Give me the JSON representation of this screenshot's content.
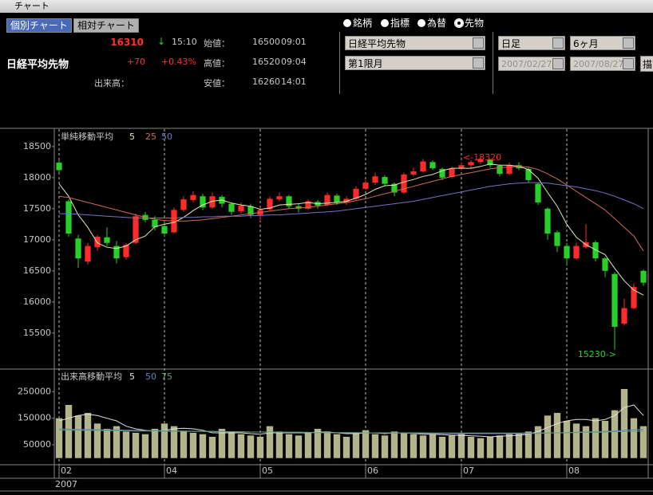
{
  "window": {
    "title": "チャート"
  },
  "tabs": [
    "個別チャート",
    "相対チャート"
  ],
  "selected_tab": 0,
  "quote": {
    "name": "日経平均先物",
    "price": 16310,
    "arrow": "↓",
    "time": "15:10",
    "change": "+70",
    "change_pct": "+0.43%",
    "open_label": "始値：",
    "open": 16500,
    "open_time": "09:01",
    "high_label": "高値：",
    "high": 16520,
    "high_time": "09:04",
    "volume_label": "出来高：",
    "low_label": "安値：",
    "low": 16260,
    "low_time": "14:01"
  },
  "market_types": [
    "銘柄",
    "指標",
    "為替",
    "先物"
  ],
  "selected_market": 3,
  "controls": {
    "symbol": "日経平均先物",
    "contract": "第1限月",
    "period": "日足",
    "range": "6ヶ月",
    "from": "2007/02/27",
    "to": "2007/08/27",
    "draw_button": "描"
  },
  "chart_data": [
    {
      "type": "candlestick",
      "legend_title": "単純移動平均",
      "up_color": "#ff2a2a",
      "down_color": "#2ad02a",
      "ylim": [
        14920,
        18780
      ],
      "yticks": [
        15500,
        16000,
        16500,
        17000,
        17500,
        18000,
        18500
      ],
      "annotations": [
        {
          "label": "<-18320",
          "value": 18320
        },
        {
          "label": "15230->",
          "value": 15230
        }
      ],
      "ohlc": [
        [
          18240,
          18290,
          18080,
          18120
        ],
        [
          17620,
          17650,
          17050,
          17100
        ],
        [
          17020,
          17080,
          16550,
          16700
        ],
        [
          16650,
          16950,
          16600,
          16900
        ],
        [
          16880,
          17080,
          16820,
          17050
        ],
        [
          17040,
          17200,
          16900,
          16950
        ],
        [
          16900,
          16980,
          16620,
          16700
        ],
        [
          16720,
          16950,
          16680,
          16920
        ],
        [
          16950,
          17420,
          16930,
          17380
        ],
        [
          17400,
          17450,
          17280,
          17320
        ],
        [
          17320,
          17380,
          17150,
          17200
        ],
        [
          17220,
          17300,
          17050,
          17100
        ],
        [
          17120,
          17520,
          17100,
          17480
        ],
        [
          17480,
          17700,
          17450,
          17650
        ],
        [
          17640,
          17780,
          17600,
          17720
        ],
        [
          17700,
          17740,
          17480,
          17520
        ],
        [
          17520,
          17760,
          17500,
          17700
        ],
        [
          17690,
          17720,
          17520,
          17580
        ],
        [
          17580,
          17600,
          17400,
          17450
        ],
        [
          17460,
          17600,
          17420,
          17550
        ],
        [
          17540,
          17580,
          17350,
          17400
        ],
        [
          17400,
          17520,
          17300,
          17480
        ],
        [
          17490,
          17700,
          17460,
          17660
        ],
        [
          17650,
          17760,
          17620,
          17700
        ],
        [
          17700,
          17720,
          17500,
          17540
        ],
        [
          17540,
          17580,
          17440,
          17500
        ],
        [
          17500,
          17650,
          17480,
          17620
        ],
        [
          17610,
          17640,
          17500,
          17550
        ],
        [
          17560,
          17760,
          17540,
          17720
        ],
        [
          17710,
          17740,
          17560,
          17600
        ],
        [
          17600,
          17700,
          17560,
          17660
        ],
        [
          17660,
          17860,
          17640,
          17820
        ],
        [
          17820,
          17960,
          17800,
          17920
        ],
        [
          17920,
          18080,
          17880,
          18020
        ],
        [
          18010,
          18040,
          17860,
          17900
        ],
        [
          17900,
          17920,
          17700,
          17760
        ],
        [
          17760,
          18080,
          17740,
          18050
        ],
        [
          18050,
          18160,
          18020,
          18100
        ],
        [
          18100,
          18300,
          18080,
          18260
        ],
        [
          18250,
          18280,
          18120,
          18150
        ],
        [
          18140,
          18160,
          17960,
          18000
        ],
        [
          18010,
          18180,
          17990,
          18150
        ],
        [
          18150,
          18240,
          18120,
          18200
        ],
        [
          18200,
          18280,
          18150,
          18250
        ],
        [
          18250,
          18320,
          18220,
          18300
        ],
        [
          18290,
          18300,
          18160,
          18200
        ],
        [
          18190,
          18210,
          18020,
          18060
        ],
        [
          18060,
          18240,
          18040,
          18200
        ],
        [
          18200,
          18250,
          18120,
          18150
        ],
        [
          18140,
          18160,
          17920,
          17960
        ],
        [
          17900,
          17920,
          17560,
          17600
        ],
        [
          17500,
          17520,
          17000,
          17100
        ],
        [
          17120,
          17150,
          16800,
          16900
        ],
        [
          16900,
          16950,
          16600,
          16700
        ],
        [
          16700,
          16950,
          16680,
          16900
        ],
        [
          16880,
          17250,
          16860,
          16960
        ],
        [
          16960,
          16990,
          16650,
          16700
        ],
        [
          16700,
          16720,
          16400,
          16500
        ],
        [
          16450,
          16480,
          15230,
          15600
        ],
        [
          15650,
          16050,
          15620,
          15900
        ],
        [
          15900,
          16300,
          15880,
          16240
        ],
        [
          16500,
          16520,
          16260,
          16310
        ]
      ],
      "series": [
        {
          "name": "5",
          "color": "#e6e6b4",
          "values": [
            17900,
            17700,
            17400,
            17200,
            16950,
            16880,
            16860,
            16900,
            17000,
            17060,
            17210,
            17250,
            17280,
            17360,
            17470,
            17560,
            17620,
            17640,
            17590,
            17560,
            17540,
            17490,
            17510,
            17560,
            17570,
            17580,
            17600,
            17580,
            17590,
            17600,
            17620,
            17670,
            17730,
            17810,
            17870,
            17880,
            17930,
            17970,
            18020,
            18050,
            18110,
            18150,
            18150,
            18150,
            18180,
            18220,
            18200,
            18200,
            18180,
            18130,
            17990,
            17760,
            17540,
            17250,
            17040,
            16920,
            16840,
            16760,
            16540,
            16340,
            16190,
            16110
          ]
        },
        {
          "name": "25",
          "color": "#d06a5a",
          "values": [
            17700,
            17680,
            17640,
            17600,
            17560,
            17520,
            17480,
            17440,
            17400,
            17360,
            17330,
            17310,
            17300,
            17300,
            17310,
            17320,
            17340,
            17360,
            17380,
            17400,
            17420,
            17440,
            17460,
            17480,
            17500,
            17510,
            17520,
            17540,
            17560,
            17580,
            17600,
            17630,
            17660,
            17700,
            17740,
            17780,
            17820,
            17860,
            17900,
            17940,
            17980,
            18020,
            18050,
            18080,
            18110,
            18140,
            18160,
            18170,
            18180,
            18170,
            18130,
            18060,
            17980,
            17880,
            17780,
            17680,
            17580,
            17480,
            17340,
            17200,
            17060,
            16820
          ]
        },
        {
          "name": "50",
          "color": "#7474c8",
          "values": [
            17420,
            17420,
            17410,
            17400,
            17390,
            17380,
            17370,
            17360,
            17350,
            17350,
            17350,
            17350,
            17350,
            17360,
            17360,
            17370,
            17370,
            17380,
            17380,
            17380,
            17390,
            17390,
            17400,
            17400,
            17410,
            17420,
            17430,
            17440,
            17450,
            17460,
            17480,
            17500,
            17520,
            17540,
            17560,
            17580,
            17600,
            17620,
            17650,
            17680,
            17710,
            17740,
            17770,
            17800,
            17830,
            17860,
            17880,
            17900,
            17910,
            17920,
            17920,
            17910,
            17890,
            17870,
            17850,
            17820,
            17790,
            17750,
            17700,
            17640,
            17580,
            17500
          ]
        }
      ]
    },
    {
      "type": "bar",
      "legend_title": "出来高移動平均",
      "color": "#b4b48c",
      "year_label": "2007",
      "ylim": [
        -25000,
        335000
      ],
      "yticks": [
        50000,
        150000,
        250000
      ],
      "categories": [
        "02",
        null,
        null,
        null,
        null,
        null,
        null,
        null,
        null,
        null,
        null,
        "04",
        null,
        null,
        null,
        null,
        null,
        null,
        null,
        null,
        null,
        "05",
        null,
        null,
        null,
        null,
        null,
        null,
        null,
        null,
        null,
        null,
        "06",
        null,
        null,
        null,
        null,
        null,
        null,
        null,
        null,
        null,
        "07",
        null,
        null,
        null,
        null,
        null,
        null,
        null,
        null,
        null,
        null,
        "08",
        null,
        null,
        null,
        null,
        null,
        null,
        null,
        null
      ],
      "values": [
        150000,
        200000,
        160000,
        170000,
        130000,
        110000,
        120000,
        100000,
        95000,
        90000,
        110000,
        130000,
        120000,
        100000,
        95000,
        90000,
        80000,
        110000,
        100000,
        90000,
        85000,
        80000,
        120000,
        100000,
        90000,
        85000,
        95000,
        110000,
        100000,
        90000,
        80000,
        95000,
        105000,
        90000,
        85000,
        100000,
        95000,
        90000,
        85000,
        90000,
        80000,
        85000,
        90000,
        80000,
        75000,
        80000,
        85000,
        90000,
        95000,
        100000,
        120000,
        160000,
        170000,
        140000,
        130000,
        120000,
        150000,
        140000,
        180000,
        260000,
        150000,
        120000
      ],
      "series": [
        {
          "name": "5",
          "color": "#e0e0e0",
          "values": [
            140000,
            150000,
            160000,
            165000,
            160000,
            150000,
            140000,
            120000,
            110000,
            105000,
            100000,
            105000,
            110000,
            112000,
            110000,
            105000,
            95000,
            95000,
            95000,
            95000,
            92000,
            90000,
            95000,
            95000,
            95000,
            95000,
            95000,
            98000,
            98000,
            95000,
            92000,
            92000,
            95000,
            95000,
            92000,
            95000,
            95000,
            93000,
            90000,
            90000,
            88000,
            86000,
            86000,
            84000,
            82000,
            80000,
            82000,
            84000,
            86000,
            90000,
            100000,
            115000,
            130000,
            140000,
            145000,
            145000,
            140000,
            145000,
            160000,
            190000,
            200000,
            160000
          ]
        },
        {
          "name": "50",
          "color": "#6a84c0",
          "values": [
            110000,
            109000,
            108000,
            108000,
            107000,
            106000,
            106000,
            105000,
            104000,
            104000,
            103000,
            103000,
            102000,
            102000,
            101000,
            101000,
            100000,
            100000,
            99000,
            99000,
            98000,
            98000,
            98000,
            97000,
            97000,
            97000,
            96000,
            96000,
            96000,
            95000,
            95000,
            95000,
            95000,
            94000,
            94000,
            94000,
            94000,
            93000,
            93000,
            93000,
            93000,
            92000,
            92000,
            92000,
            92000,
            92000,
            92000,
            92000,
            92000,
            93000,
            93000,
            94000,
            95000,
            96000,
            97000,
            98000,
            99000,
            100000,
            102000,
            105000,
            107000,
            108000
          ]
        },
        {
          "name": "75",
          "color": "#5fa878",
          "values": [
            105000,
            105000,
            104000,
            104000,
            104000,
            103000,
            103000,
            103000,
            102000,
            102000,
            102000,
            101000,
            101000,
            101000,
            100000,
            100000,
            100000,
            99000,
            99000,
            99000,
            98000,
            98000,
            98000,
            97000,
            97000,
            97000,
            97000,
            96000,
            96000,
            96000,
            96000,
            96000,
            95000,
            95000,
            95000,
            95000,
            95000,
            95000,
            95000,
            94000,
            94000,
            94000,
            94000,
            94000,
            94000,
            94000,
            94000,
            94000,
            94000,
            94000,
            94000,
            95000,
            95000,
            96000,
            96000,
            97000,
            97000,
            98000,
            99000,
            100000,
            101000,
            102000
          ]
        }
      ]
    }
  ]
}
